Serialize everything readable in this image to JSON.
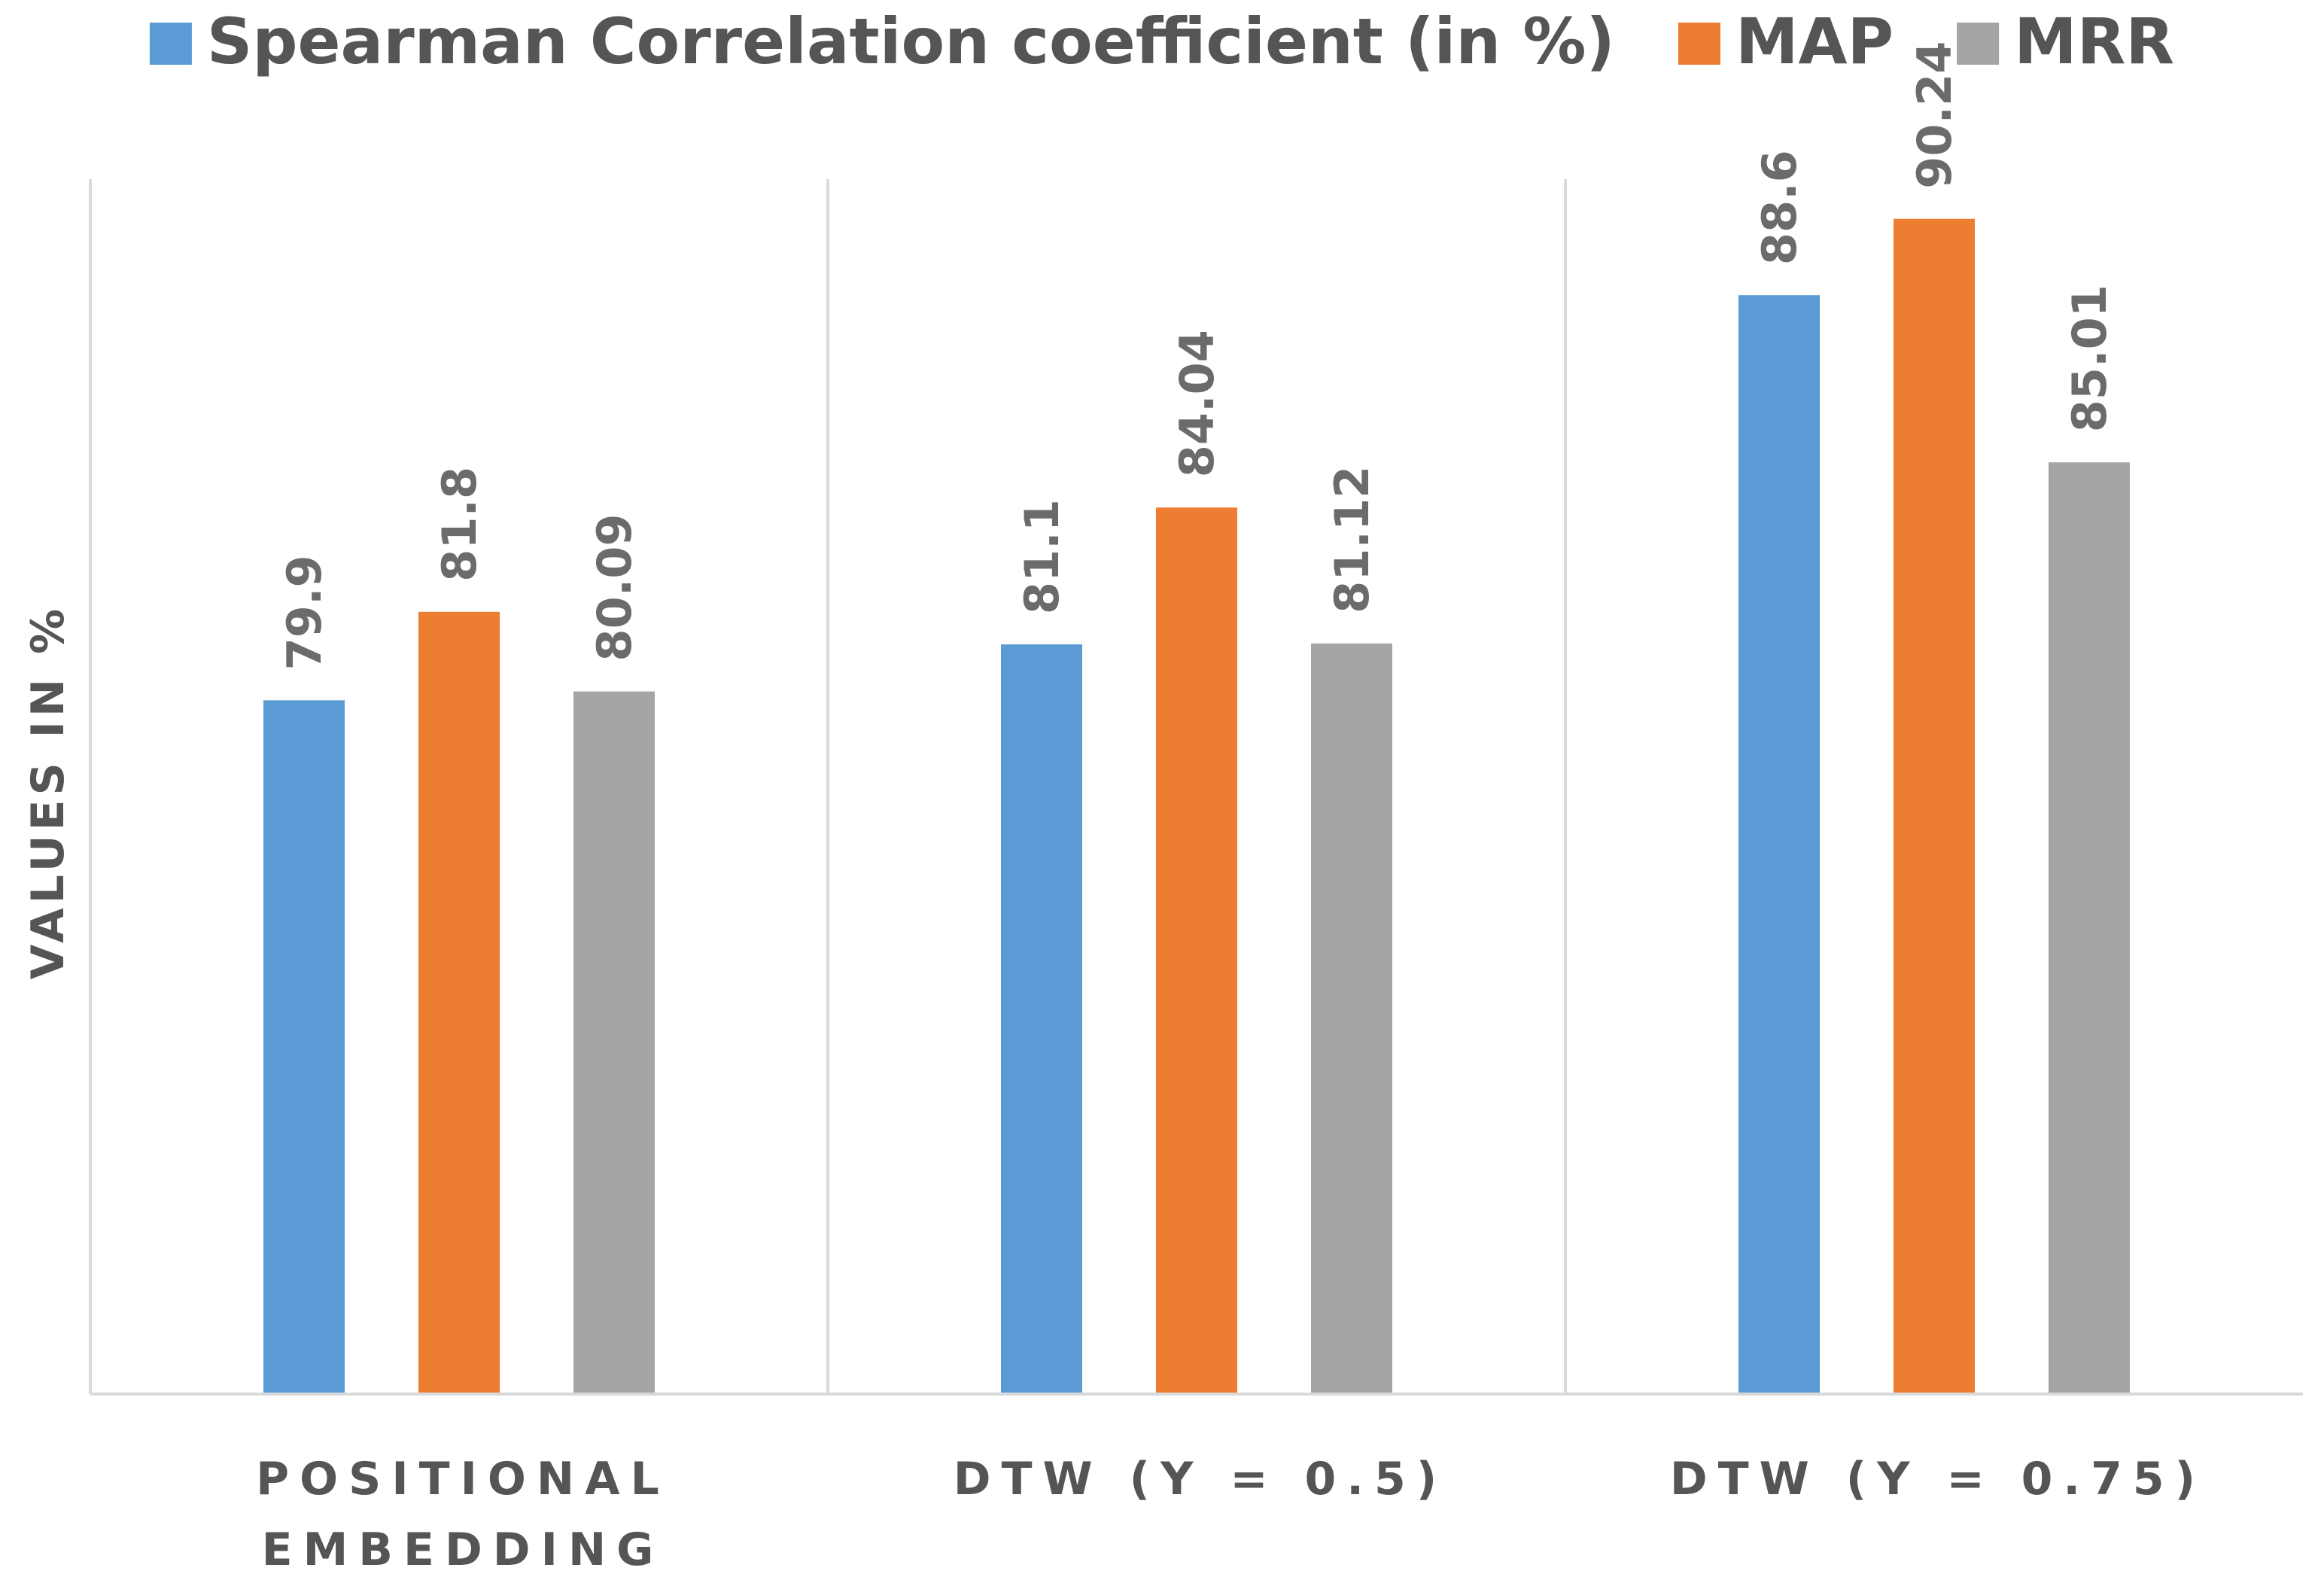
{
  "chart_data": {
    "type": "bar",
    "title": "",
    "xlabel": "",
    "ylabel": "VALUES IN %",
    "ylim": [
      65,
      93
    ],
    "grid": false,
    "legend_position": "top",
    "categories": [
      [
        "POSITIONAL",
        "EMBEDDING"
      ],
      [
        "DTW (Y = 0.5)"
      ],
      [
        "DTW (Y = 0.75)"
      ]
    ],
    "series": [
      {
        "name": "Spearman Correlation coefficient (in %)",
        "color": "#5b9bd5",
        "values": [
          79.9,
          81.1,
          88.6
        ],
        "labels": [
          "79.9",
          "81.1",
          "88.6"
        ]
      },
      {
        "name": "MAP",
        "color": "#ed7d31",
        "values": [
          81.8,
          84.04,
          90.24
        ],
        "labels": [
          "81.8",
          "84.04",
          "90.24"
        ]
      },
      {
        "name": "MRR",
        "color": "#a5a5a5",
        "values": [
          80.09,
          81.12,
          85.01
        ],
        "labels": [
          "80.09",
          "81.12",
          "85.01"
        ]
      }
    ]
  }
}
